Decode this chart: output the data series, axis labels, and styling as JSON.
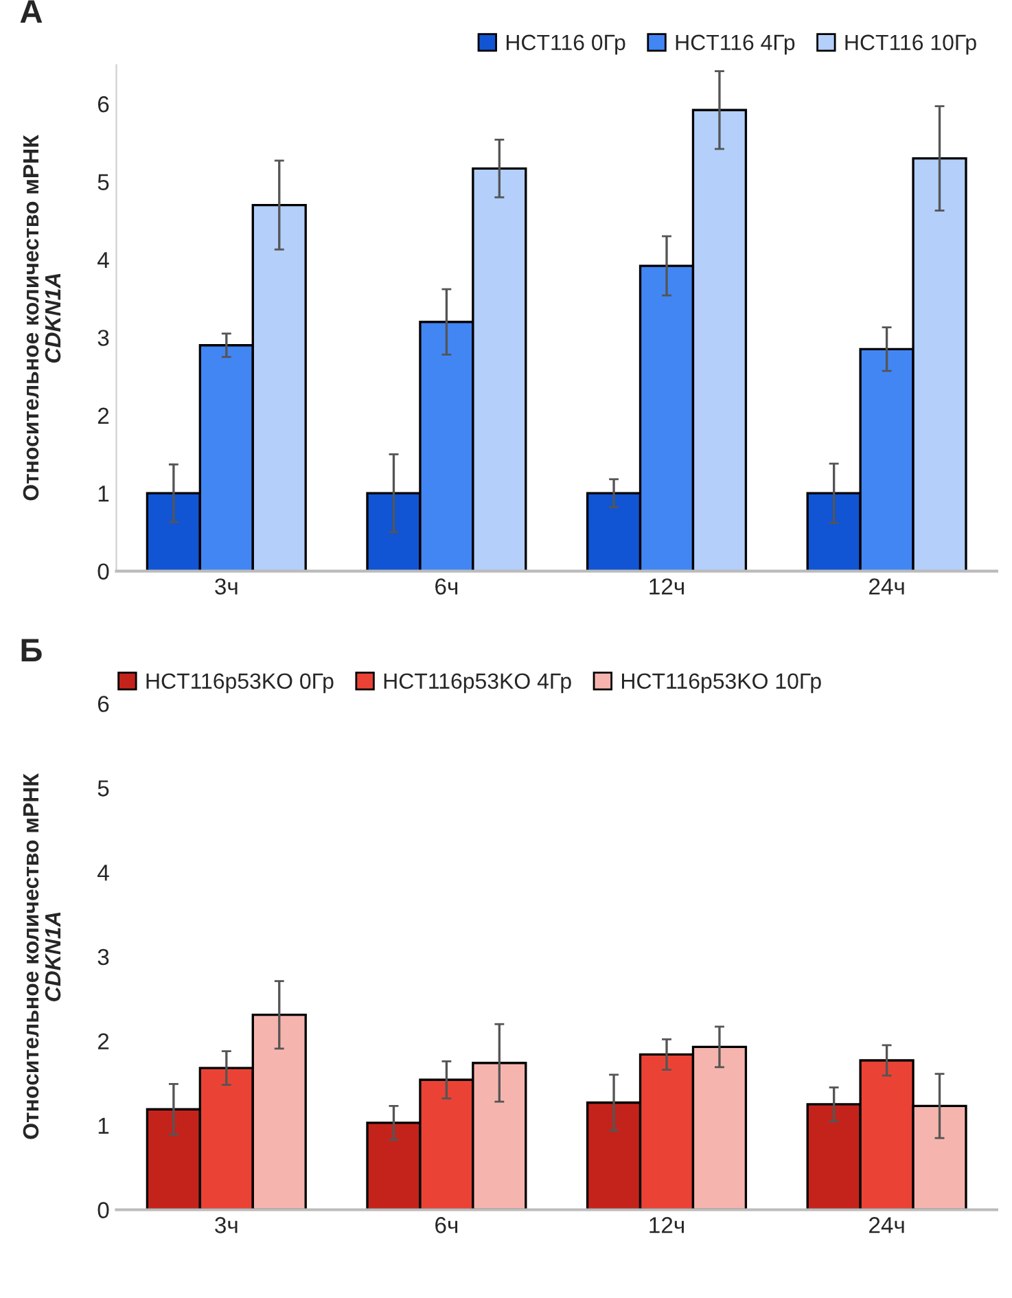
{
  "chart_data": [
    {
      "type": "bar",
      "title": "А",
      "ylabel": "Относительное количество мРНК\nCDKN1A",
      "categories": [
        "3ч",
        "6ч",
        "12ч",
        "24ч"
      ],
      "ylim": [
        0,
        6.5
      ],
      "yticks": [
        0,
        1,
        2,
        3,
        4,
        5,
        6
      ],
      "legend": "top right",
      "series": [
        {
          "name": "HCT116 0Гр",
          "color": "#1155d4",
          "values": [
            1,
            1,
            1,
            1
          ],
          "errors": [
            0.37,
            0.5,
            0.18,
            0.38
          ]
        },
        {
          "name": "HCT116 4Гр",
          "color": "#4286f4",
          "values": [
            2.9,
            3.2,
            3.92,
            2.85
          ],
          "errors": [
            0.15,
            0.42,
            0.38,
            0.28
          ]
        },
        {
          "name": "HCT116 10Гр",
          "color": "#b3cffa",
          "values": [
            4.7,
            5.17,
            5.92,
            5.3
          ],
          "errors": [
            0.57,
            0.37,
            0.5,
            0.67
          ]
        }
      ]
    },
    {
      "type": "bar",
      "title": "Б",
      "ylabel": "Относительное количество мРНК\nCDKN1A",
      "categories": [
        "3ч",
        "6ч",
        "12ч",
        "24ч"
      ],
      "ylim": [
        0,
        6
      ],
      "yticks": [
        0,
        1,
        2,
        3,
        4,
        5,
        6
      ],
      "legend": "top left",
      "series": [
        {
          "name": "HCT116p53KO 0Гр",
          "color": "#c4231c",
          "values": [
            1.19,
            1.03,
            1.27,
            1.25
          ],
          "errors": [
            0.3,
            0.2,
            0.33,
            0.2
          ]
        },
        {
          "name": "HCT116p53KO 4Гр",
          "color": "#ea4335",
          "values": [
            1.68,
            1.54,
            1.84,
            1.77
          ],
          "errors": [
            0.2,
            0.22,
            0.18,
            0.18
          ]
        },
        {
          "name": "HCT116p53KO 10Гр",
          "color": "#f5b5ae",
          "values": [
            2.31,
            1.74,
            1.93,
            1.23
          ],
          "errors": [
            0.4,
            0.46,
            0.24,
            0.38
          ]
        }
      ]
    }
  ]
}
